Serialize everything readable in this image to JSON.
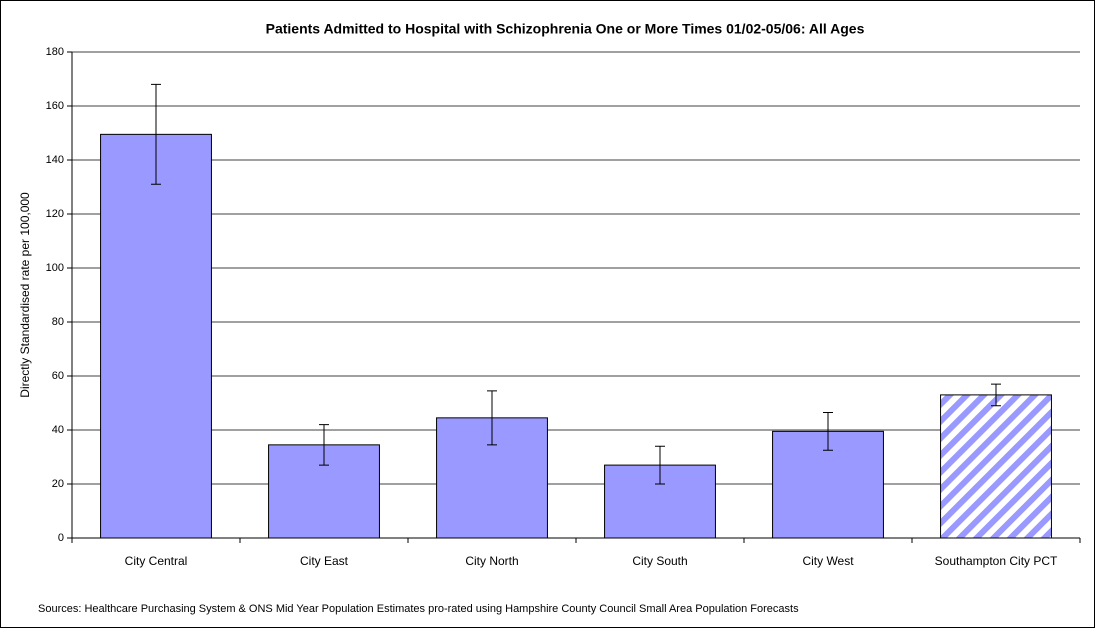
{
  "chart_data": {
    "type": "bar",
    "title": "Patients Admitted to Hospital with Schizophrenia One or More Times 01/02-05/06: All Ages",
    "y_label": "Directly Standardised rate per 100,000",
    "source": "Sources: Healthcare Purchasing System & ONS Mid Year Population Estimates pro-rated using Hampshire County Council Small Area Population Forecasts",
    "categories": [
      "City Central",
      "City East",
      "City North",
      "City South",
      "City West",
      "Southampton City PCT"
    ],
    "values": [
      149.5,
      34.5,
      44.5,
      27,
      39.5,
      53
    ],
    "errors": [
      18.5,
      7.5,
      10,
      7,
      7,
      4
    ],
    "hatched": [
      false,
      false,
      false,
      false,
      false,
      true
    ],
    "color": "#9999ff",
    "ylim": [
      0,
      180
    ],
    "yticks": [
      0,
      20,
      40,
      60,
      80,
      100,
      120,
      140,
      160,
      180
    ],
    "grid": true
  }
}
